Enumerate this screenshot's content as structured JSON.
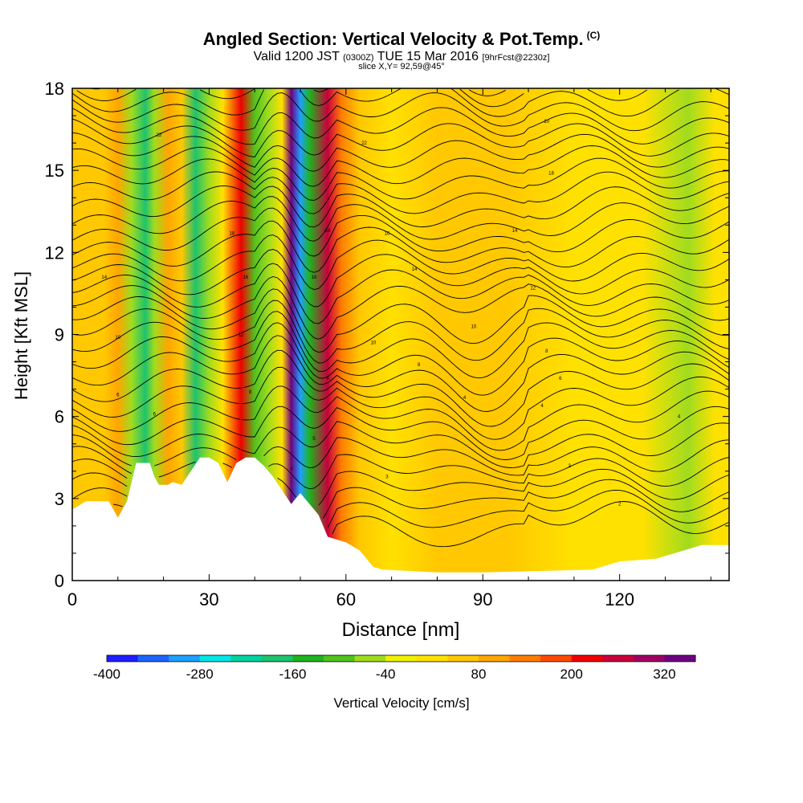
{
  "chart_data": {
    "type": "heatmap",
    "title": "Angled Section: Vertical Velocity & Pot.Temp.",
    "title_mark": "(C)",
    "subtitle_valid": "Valid 1200 JST",
    "subtitle_z": "(0300Z)",
    "subtitle_date": "TUE 15 Mar 2016",
    "subtitle_fcst": "[9hrFcst@2230z]",
    "slice_label": "slice X,Y= 92,59@45°",
    "xlabel": "Distance [nm]",
    "ylabel": "Height [Kft MSL]",
    "xlim": [
      0,
      144
    ],
    "ylim": [
      0,
      18
    ],
    "x_ticks": [
      "0",
      "30",
      "60",
      "90",
      "120"
    ],
    "x_tick_values": [
      0,
      30,
      60,
      90,
      120
    ],
    "y_ticks": [
      "0",
      "3",
      "6",
      "9",
      "12",
      "15",
      "18"
    ],
    "y_tick_values": [
      0,
      3,
      6,
      9,
      12,
      15,
      18
    ],
    "colorbar": {
      "label": "Vertical Velocity [cm/s]",
      "tick_labels": [
        "-400",
        "-280",
        "-160",
        "-40",
        "80",
        "200",
        "320"
      ],
      "tick_values": [
        -400,
        -280,
        -160,
        -40,
        80,
        200,
        320
      ],
      "range": [
        -400,
        360
      ],
      "colors": [
        "#1e1eff",
        "#1e64ff",
        "#1ea0ff",
        "#00e6e6",
        "#00d2a0",
        "#1ec36e",
        "#1eb41e",
        "#50c31e",
        "#a0dc1e",
        "#f0f000",
        "#ffe100",
        "#ffc800",
        "#ffa500",
        "#ff7d00",
        "#ff4b00",
        "#f00000",
        "#c8003c",
        "#a00064",
        "#6e0082"
      ]
    },
    "velocity_columns": [
      {
        "x": 3,
        "value": 60
      },
      {
        "x": 7,
        "value": 40
      },
      {
        "x": 10,
        "value": 80
      },
      {
        "x": 13,
        "value": -60
      },
      {
        "x": 16,
        "value": -200
      },
      {
        "x": 18,
        "value": -80
      },
      {
        "x": 21,
        "value": 110
      },
      {
        "x": 24,
        "value": 60
      },
      {
        "x": 27,
        "value": -180
      },
      {
        "x": 30,
        "value": -60
      },
      {
        "x": 33,
        "value": 20
      },
      {
        "x": 37,
        "value": 230
      },
      {
        "x": 40,
        "value": -120
      },
      {
        "x": 43,
        "value": -60
      },
      {
        "x": 46,
        "value": 30
      },
      {
        "x": 48,
        "value": 320
      },
      {
        "x": 50,
        "value": -300
      },
      {
        "x": 52,
        "value": -160
      },
      {
        "x": 56,
        "value": 260
      },
      {
        "x": 59,
        "value": 140
      },
      {
        "x": 63,
        "value": 40
      },
      {
        "x": 70,
        "value": 20
      },
      {
        "x": 80,
        "value": 60
      },
      {
        "x": 95,
        "value": 40
      },
      {
        "x": 110,
        "value": 20
      },
      {
        "x": 125,
        "value": 10
      },
      {
        "x": 135,
        "value": -60
      },
      {
        "x": 141,
        "value": 0
      }
    ],
    "terrain": [
      [
        0,
        2.6
      ],
      [
        3,
        2.9
      ],
      [
        8,
        2.9
      ],
      [
        10,
        2.3
      ],
      [
        12,
        2.9
      ],
      [
        14,
        4.3
      ],
      [
        17,
        4.3
      ],
      [
        18,
        3.8
      ],
      [
        19,
        3.5
      ],
      [
        21,
        3.5
      ],
      [
        22,
        3.6
      ],
      [
        24,
        3.5
      ],
      [
        26,
        4.0
      ],
      [
        28,
        4.5
      ],
      [
        30,
        4.5
      ],
      [
        32,
        4.3
      ],
      [
        34,
        3.6
      ],
      [
        36,
        4.3
      ],
      [
        38,
        4.5
      ],
      [
        40,
        4.5
      ],
      [
        42,
        4.2
      ],
      [
        44,
        3.8
      ],
      [
        46,
        3.3
      ],
      [
        48,
        2.8
      ],
      [
        50,
        3.2
      ],
      [
        52,
        2.8
      ],
      [
        54,
        2.4
      ],
      [
        56,
        1.6
      ],
      [
        60,
        1.4
      ],
      [
        63,
        1.1
      ],
      [
        66,
        0.5
      ],
      [
        68,
        0.4
      ],
      [
        80,
        0.3
      ],
      [
        90,
        0.3
      ],
      [
        114,
        0.4
      ],
      [
        120,
        0.7
      ],
      [
        128,
        0.8
      ],
      [
        132,
        1.0
      ],
      [
        138,
        1.3
      ],
      [
        144,
        1.3
      ]
    ],
    "isotherm_labels": [
      {
        "x": 19,
        "y": 16.3,
        "text": "22"
      },
      {
        "x": 64,
        "y": 16.0,
        "text": "22"
      },
      {
        "x": 104,
        "y": 16.8,
        "text": "20"
      },
      {
        "x": 105,
        "y": 14.9,
        "text": "18"
      },
      {
        "x": 35,
        "y": 12.7,
        "text": "18"
      },
      {
        "x": 56,
        "y": 12.8,
        "text": "18"
      },
      {
        "x": 69,
        "y": 12.7,
        "text": "16"
      },
      {
        "x": 97,
        "y": 12.8,
        "text": "14"
      },
      {
        "x": 7,
        "y": 11.1,
        "text": "14"
      },
      {
        "x": 38,
        "y": 11.1,
        "text": "16"
      },
      {
        "x": 53,
        "y": 11.1,
        "text": "16"
      },
      {
        "x": 75,
        "y": 11.4,
        "text": "14"
      },
      {
        "x": 101,
        "y": 10.7,
        "text": "12"
      },
      {
        "x": 10,
        "y": 8.9,
        "text": "10"
      },
      {
        "x": 37,
        "y": 9.0,
        "text": "12"
      },
      {
        "x": 88,
        "y": 9.3,
        "text": "10"
      },
      {
        "x": 66,
        "y": 8.7,
        "text": "10"
      },
      {
        "x": 104,
        "y": 8.4,
        "text": "8"
      },
      {
        "x": 76,
        "y": 7.9,
        "text": "8"
      },
      {
        "x": 107,
        "y": 7.4,
        "text": "6"
      },
      {
        "x": 10,
        "y": 6.8,
        "text": "6"
      },
      {
        "x": 39,
        "y": 6.9,
        "text": "8"
      },
      {
        "x": 56,
        "y": 7.4,
        "text": "8"
      },
      {
        "x": 86,
        "y": 6.7,
        "text": "4"
      },
      {
        "x": 103,
        "y": 6.4,
        "text": "4"
      },
      {
        "x": 18,
        "y": 6.1,
        "text": "6"
      },
      {
        "x": 133,
        "y": 6.0,
        "text": "4"
      },
      {
        "x": 53,
        "y": 5.2,
        "text": "5"
      },
      {
        "x": 48,
        "y": 4.1,
        "text": "4"
      },
      {
        "x": 69,
        "y": 3.8,
        "text": "3"
      },
      {
        "x": 109,
        "y": 4.2,
        "text": "2"
      },
      {
        "x": 120,
        "y": 2.8,
        "text": "2"
      }
    ],
    "grid": false,
    "legend": "colorbar-bottom"
  }
}
